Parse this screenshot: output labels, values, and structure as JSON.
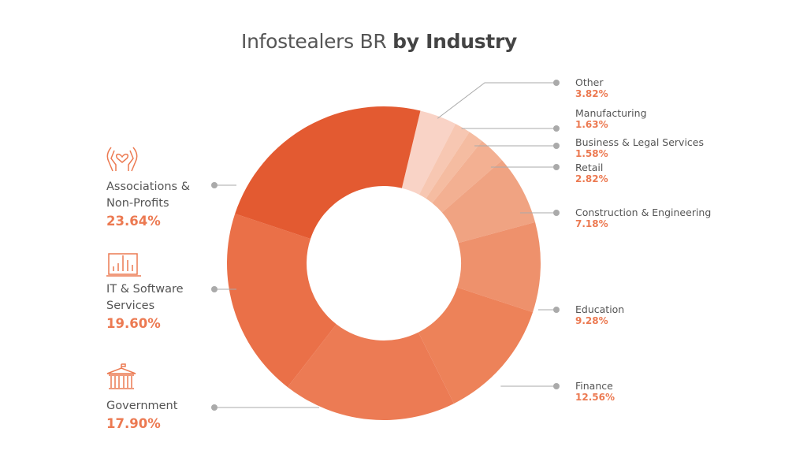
{
  "chart_data": {
    "type": "pie",
    "variant": "donut",
    "title": "Infostealers BR",
    "title_bold": "by Industry",
    "slices": [
      {
        "label": "Other",
        "value": 3.82,
        "display": "3.82%",
        "color": "#f9d3c6"
      },
      {
        "label": "Manufacturing",
        "value": 1.63,
        "display": "1.63%",
        "color": "#f7c7b2"
      },
      {
        "label": "Business & Legal Services",
        "value": 1.58,
        "display": "1.58%",
        "color": "#f5bca1"
      },
      {
        "label": "Retail",
        "value": 2.82,
        "display": "2.82%",
        "color": "#f3b092"
      },
      {
        "label": "Construction & Engineering",
        "value": 7.18,
        "display": "7.18%",
        "color": "#f0a382"
      },
      {
        "label": "Education",
        "value": 9.28,
        "display": "9.28%",
        "color": "#ee916c"
      },
      {
        "label": "Finance",
        "value": 12.56,
        "display": "12.56%",
        "color": "#ed8259"
      },
      {
        "label": "Government",
        "value": 17.9,
        "display": "17.90%",
        "color": "#ec7b54"
      },
      {
        "label": "IT & Software Services",
        "value": 19.6,
        "display": "19.60%",
        "color": "#ea7048"
      },
      {
        "label": "Associations & Non-Profits",
        "value": 23.64,
        "display": "23.64%",
        "color": "#e35a31"
      }
    ],
    "left_labels": [
      {
        "line1": "Associations &",
        "line2": "Non-Profits",
        "icon": "hands-heart-icon"
      },
      {
        "line1": "IT & Software",
        "line2": "Services",
        "icon": "laptop-chart-icon"
      },
      {
        "line1": "Government",
        "line2": "",
        "icon": "government-building-icon"
      }
    ]
  }
}
